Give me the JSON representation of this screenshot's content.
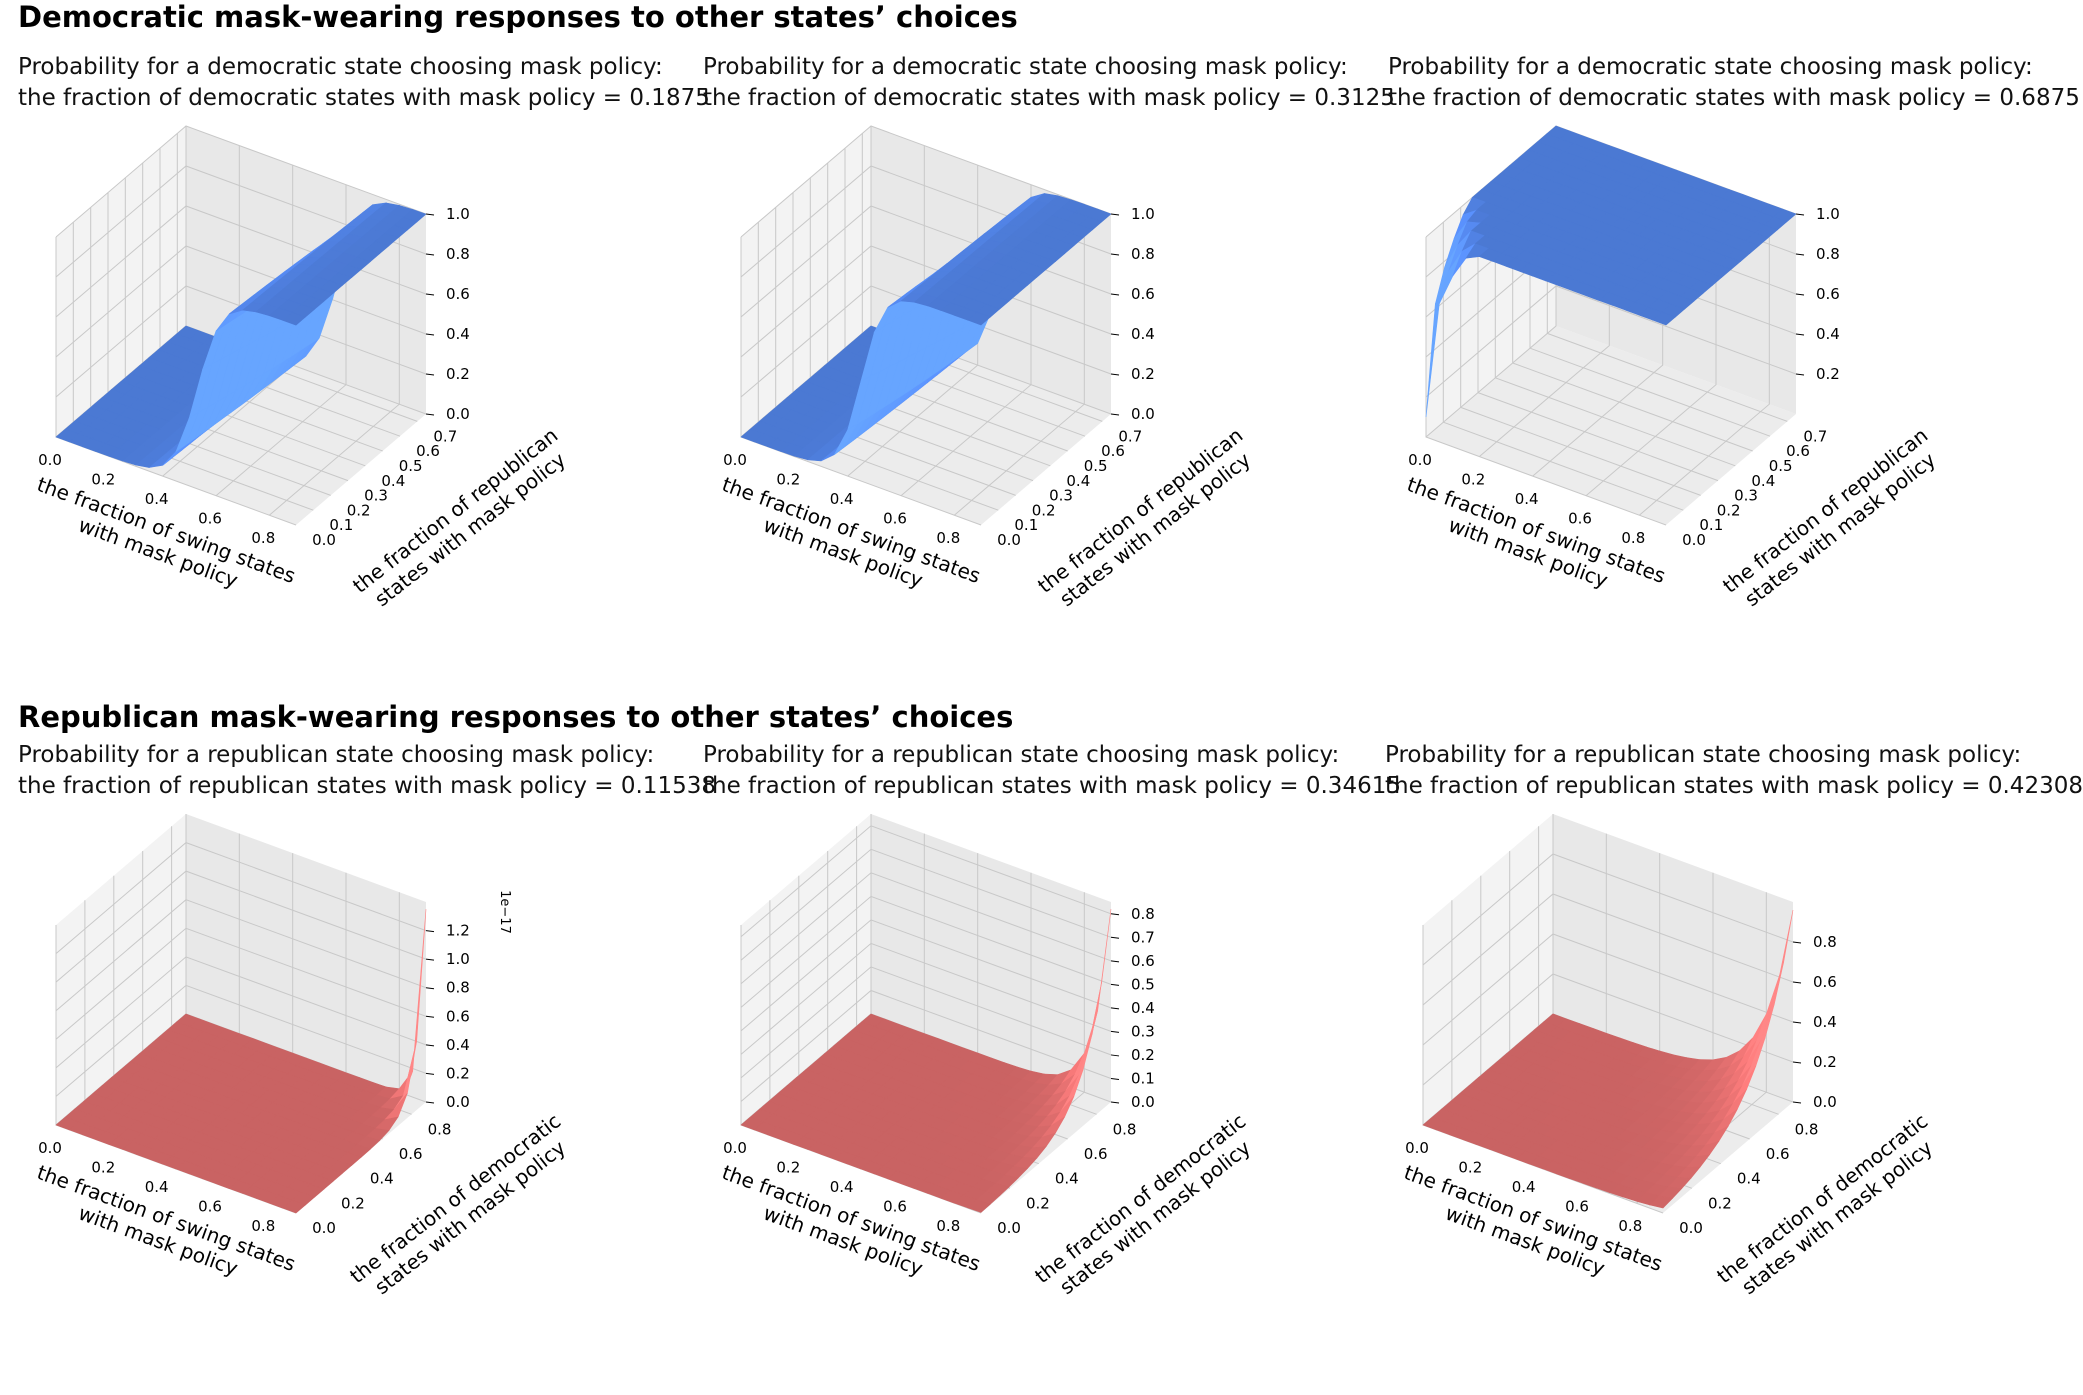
{
  "headings": {
    "democratic": "Democratic mask-wearing responses to other states’ choices",
    "republican": "Republican mask-wearing responses to other states’ choices"
  },
  "colors": {
    "democratic": "#4f7fde",
    "republican": "#d46868"
  },
  "chart_data": [
    {
      "type": "surface3d",
      "title_line1": "Probability for a democratic state choosing mask policy:",
      "title_line2": "the fraction of democratic states with mask policy = 0.1875",
      "x": {
        "label": [
          "the fraction of swing states",
          "with mask policy"
        ],
        "ticks": [
          "0.0",
          "0.2",
          "0.4",
          "0.6",
          "0.8"
        ],
        "range": [
          0,
          0.9
        ]
      },
      "y": {
        "label": [
          "the fraction of republican",
          "states with mask policy"
        ],
        "ticks": [
          "0.0",
          "0.1",
          "0.2",
          "0.3",
          "0.4",
          "0.5",
          "0.6",
          "0.7"
        ],
        "range": [
          0,
          0.75
        ]
      },
      "z": {
        "ticks": [
          "0.0",
          "0.2",
          "0.4",
          "0.6",
          "0.8",
          "1.0"
        ],
        "range": [
          0,
          1.0
        ],
        "offset_label": ""
      },
      "surface": {
        "shape": "logistic_step",
        "low": 0.0,
        "high": 1.0,
        "x_mid": 0.53,
        "steepness": 22
      },
      "color": "#4f7fde"
    },
    {
      "type": "surface3d",
      "title_line1": "Probability for a democratic state choosing mask policy:",
      "title_line2": "the fraction of democratic states with mask policy = 0.3125",
      "x": {
        "label": [
          "the fraction of swing states",
          "with mask policy"
        ],
        "ticks": [
          "0.0",
          "0.2",
          "0.4",
          "0.6",
          "0.8"
        ],
        "range": [
          0,
          0.9
        ]
      },
      "y": {
        "label": [
          "the fraction of republican",
          "states with mask policy"
        ],
        "ticks": [
          "0.0",
          "0.1",
          "0.2",
          "0.3",
          "0.4",
          "0.5",
          "0.6",
          "0.7"
        ],
        "range": [
          0,
          0.75
        ]
      },
      "z": {
        "ticks": [
          "0.0",
          "0.2",
          "0.4",
          "0.6",
          "0.8",
          "1.0"
        ],
        "range": [
          0,
          1.0
        ],
        "offset_label": ""
      },
      "surface": {
        "shape": "logistic_step",
        "low": 0.0,
        "high": 1.0,
        "x_mid": 0.45,
        "steepness": 24
      },
      "color": "#4f7fde"
    },
    {
      "type": "surface3d",
      "title_line1": "Probability for a democratic state choosing mask policy:",
      "title_line2": "the fraction of democratic states with mask policy = 0.6875",
      "x": {
        "label": [
          "the fraction of swing states",
          "with mask policy"
        ],
        "ticks": [
          "0.0",
          "0.2",
          "0.4",
          "0.6",
          "0.8"
        ],
        "range": [
          0,
          0.9
        ]
      },
      "y": {
        "label": [
          "the fraction of republican",
          "states with mask policy"
        ],
        "ticks": [
          "0.0",
          "0.1",
          "0.2",
          "0.3",
          "0.4",
          "0.5",
          "0.6",
          "0.7"
        ],
        "range": [
          0,
          0.75
        ]
      },
      "z": {
        "ticks": [
          "0.2",
          "0.4",
          "0.6",
          "0.8",
          "1.0"
        ],
        "range": [
          0,
          1.0
        ],
        "offset_label": ""
      },
      "surface": {
        "shape": "near_zero_corner",
        "low": 0.0,
        "high": 1.0
      },
      "color": "#4f7fde"
    },
    {
      "type": "surface3d",
      "title_line1": "Probability for a republican state choosing mask policy:",
      "title_line2": "the fraction of republican states with mask policy = 0.11538",
      "x": {
        "label": [
          "the fraction of swing states",
          "with mask policy"
        ],
        "ticks": [
          "0.0",
          "0.2",
          "0.4",
          "0.6",
          "0.8"
        ],
        "range": [
          0,
          0.9
        ]
      },
      "y": {
        "label": [
          "the fraction of democratic",
          "states with mask policy"
        ],
        "ticks": [
          "0.0",
          "0.2",
          "0.4",
          "0.6",
          "0.8"
        ],
        "range": [
          0,
          0.9
        ]
      },
      "z": {
        "ticks": [
          "0.0",
          "0.2",
          "0.4",
          "0.6",
          "0.8",
          "1.0",
          "1.2"
        ],
        "range": [
          0,
          1.4
        ],
        "offset_label": "1e−17"
      },
      "surface": {
        "shape": "corner_spike",
        "peak": 1.35,
        "decay": 40
      },
      "color": "#d46868"
    },
    {
      "type": "surface3d",
      "title_line1": "Probability for a republican state choosing mask policy:",
      "title_line2": "the fraction of republican states with mask policy = 0.34615",
      "x": {
        "label": [
          "the fraction of swing states",
          "with mask policy"
        ],
        "ticks": [
          "0.0",
          "0.2",
          "0.4",
          "0.6",
          "0.8"
        ],
        "range": [
          0,
          0.9
        ]
      },
      "y": {
        "label": [
          "the fraction of democratic",
          "states with mask policy"
        ],
        "ticks": [
          "0.0",
          "0.2",
          "0.4",
          "0.6",
          "0.8"
        ],
        "range": [
          0,
          0.9
        ]
      },
      "z": {
        "ticks": [
          "0.0",
          "0.1",
          "0.2",
          "0.3",
          "0.4",
          "0.5",
          "0.6",
          "0.7",
          "0.8"
        ],
        "range": [
          0,
          0.85
        ],
        "offset_label": ""
      },
      "surface": {
        "shape": "corner_spike",
        "peak": 0.82,
        "decay": 16
      },
      "color": "#d46868"
    },
    {
      "type": "surface3d",
      "title_line1": "Probability for a republican state choosing mask policy:",
      "title_line2": "the fraction of republican states with mask policy = 0.42308",
      "x": {
        "label": [
          "the fraction of swing states",
          "with mask policy"
        ],
        "ticks": [
          "0.0",
          "0.2",
          "0.4",
          "0.6",
          "0.8"
        ],
        "range": [
          0,
          0.9
        ]
      },
      "y": {
        "label": [
          "the fraction of democratic",
          "states with mask policy"
        ],
        "ticks": [
          "0.0",
          "0.2",
          "0.4",
          "0.6",
          "0.8"
        ],
        "range": [
          0,
          0.9
        ]
      },
      "z": {
        "ticks": [
          "0.0",
          "0.2",
          "0.4",
          "0.6",
          "0.8"
        ],
        "range": [
          0,
          1.0
        ],
        "offset_label": ""
      },
      "surface": {
        "shape": "corner_ramp",
        "peak": 0.96,
        "decay": 9
      },
      "color": "#d46868"
    }
  ]
}
